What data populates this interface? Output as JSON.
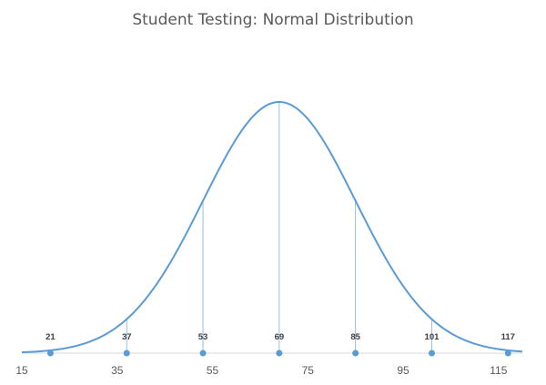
{
  "chart_data": {
    "type": "line",
    "title": "Student Testing: Normal Distribution",
    "xlabel": "",
    "ylabel": "",
    "mean": 69,
    "std_dev": 16,
    "xlim": [
      15,
      120
    ],
    "x_ticks": [
      15,
      35,
      55,
      75,
      95,
      115
    ],
    "grid": false,
    "legend": "none",
    "series": [
      {
        "values": [
          21,
          37,
          53,
          69,
          85,
          101,
          117
        ]
      }
    ],
    "points": [
      {
        "x": 21,
        "label": "21"
      },
      {
        "x": 37,
        "label": "37"
      },
      {
        "x": 53,
        "label": "53"
      },
      {
        "x": 69,
        "label": "69"
      },
      {
        "x": 85,
        "label": "85"
      },
      {
        "x": 101,
        "label": "101"
      },
      {
        "x": 117,
        "label": "117"
      }
    ],
    "colors": {
      "curve": "#5b9bd5",
      "axis": "#d9d9d9",
      "text": "#595959"
    }
  }
}
